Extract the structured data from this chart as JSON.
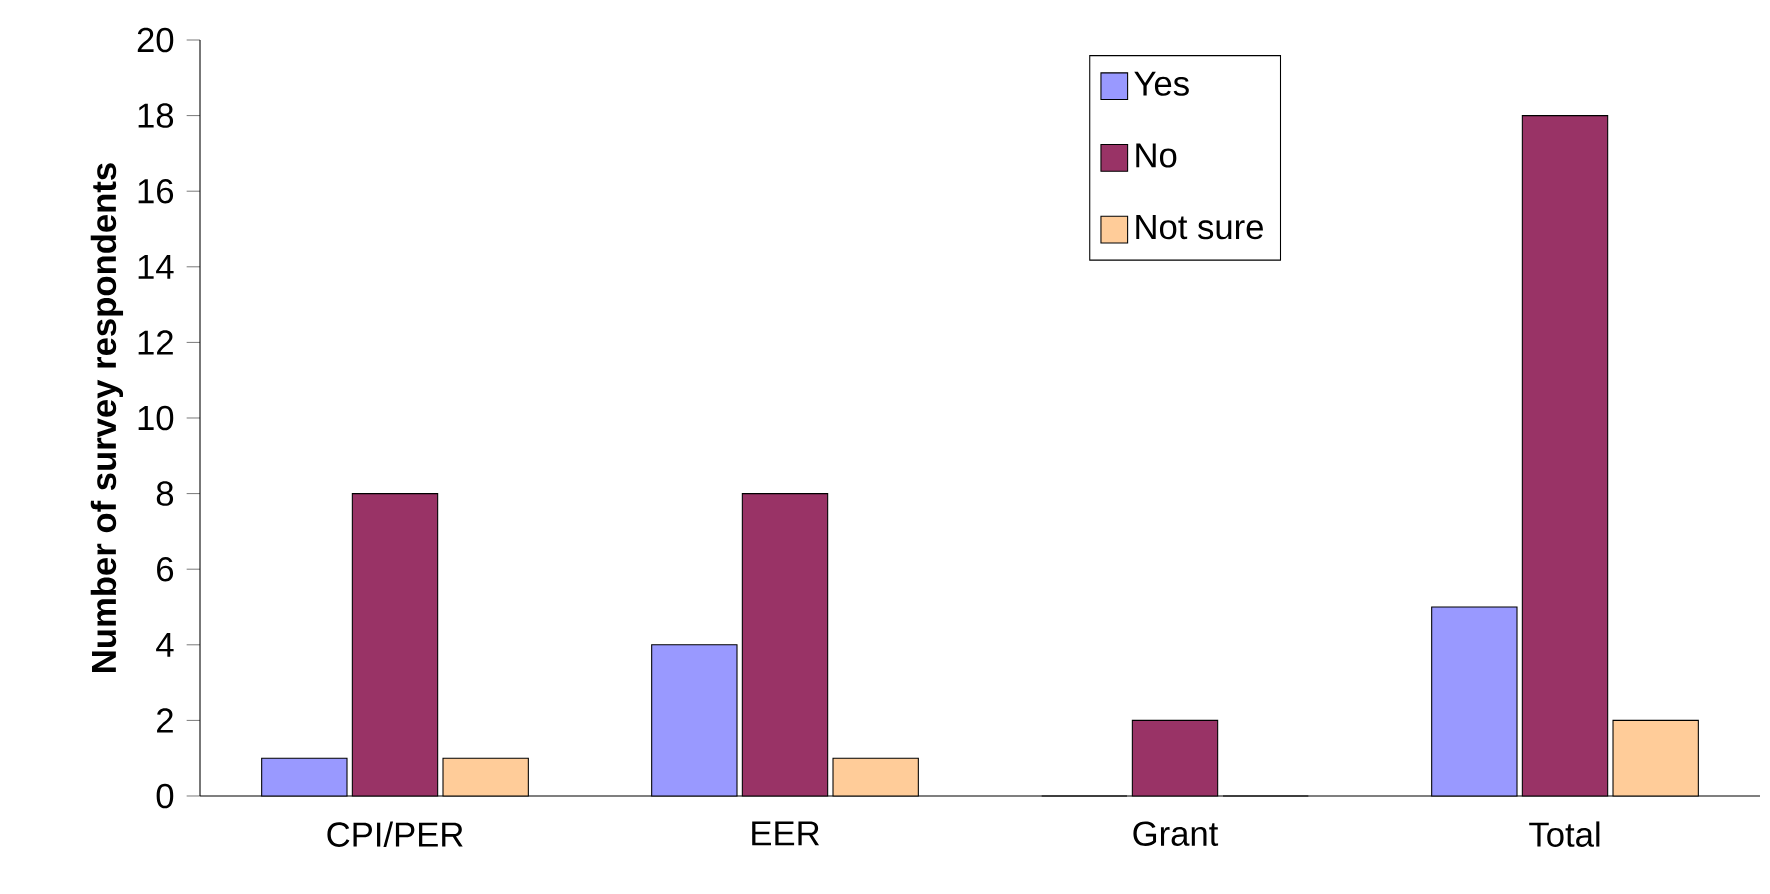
{
  "chart_data": {
    "type": "bar",
    "ylabel": "Number of survey respondents",
    "categories": [
      "CPI/PER",
      "EER",
      "Grant",
      "Total"
    ],
    "series": [
      {
        "name": "Yes",
        "color": "#9999ff",
        "values": [
          1,
          4,
          0,
          5
        ]
      },
      {
        "name": "No",
        "color": "#993366",
        "values": [
          8,
          8,
          2,
          18
        ]
      },
      {
        "name": "Not sure",
        "color": "#ffcc99",
        "values": [
          1,
          1,
          0,
          2
        ]
      }
    ],
    "ylim": [
      0,
      20
    ],
    "yticks": [
      0,
      2,
      4,
      6,
      8,
      10,
      12,
      14,
      16,
      18,
      20
    ],
    "grid": false,
    "legend": "top right"
  }
}
